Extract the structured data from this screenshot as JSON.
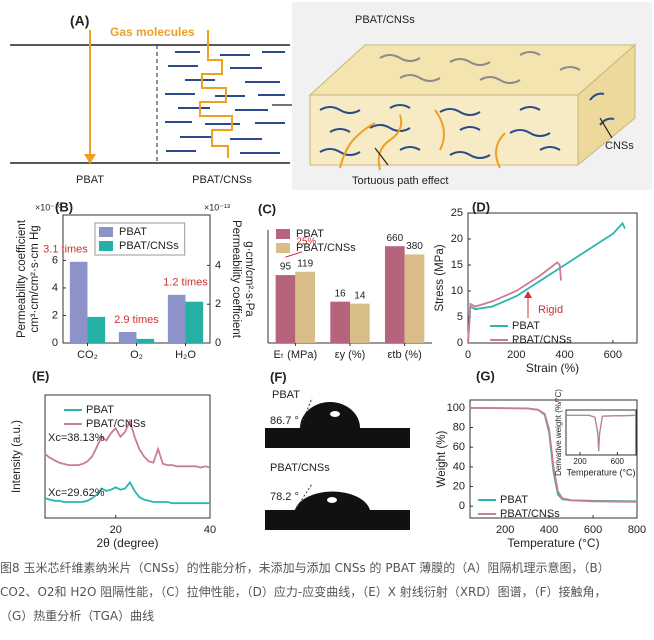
{
  "panel_a": {
    "label": "(A)",
    "gas_molecules": "Gas molecules",
    "left_film": "PBAT",
    "right_film": "PBAT/CNSs",
    "block_title": "PBAT/CNSs",
    "cns_label": "CNSs",
    "path_label": "Tortuous path effect"
  },
  "panel_f": {
    "label": "(F)",
    "top_name": "PBAT",
    "top_angle": "86.7 °",
    "bottom_name": "PBAT/CNSs",
    "bottom_angle": "78.2 °"
  },
  "chart_data": [
    {
      "type": "bar",
      "panel_label": "(B)",
      "y_label": [
        "Permeability coefficient",
        "cm³·cm/cm²·s·cm Hg"
      ],
      "y_multiplier": "×10⁻¹⁰",
      "y2_label": [
        "Permeability coefficient",
        "g·cm/cm²·s·Pa"
      ],
      "y2_multiplier": "×10⁻¹³",
      "categories": [
        "CO₂",
        "O₂",
        "H₂O"
      ],
      "series": [
        {
          "name": "PBAT",
          "color": "#8d93c9",
          "values": [
            5.9,
            0.8,
            3.5
          ]
        },
        {
          "name": "PBAT/CNSs",
          "color": "#25b0a5",
          "values": [
            1.9,
            0.3,
            3.0
          ]
        }
      ],
      "ylim": [
        0,
        9.3
      ],
      "yticks": [
        0,
        2,
        4,
        6
      ],
      "y2lim": [
        0,
        6.6
      ],
      "y2ticks": [
        0,
        2,
        4
      ],
      "annotations": [
        "3.1 times",
        "2.9 times",
        "1.2 times"
      ],
      "legend": "upper right"
    },
    {
      "type": "bar",
      "panel_label": "(C)",
      "log": true,
      "data_labels": true,
      "categories": [
        "Eₜ (MPa)",
        "εy (%)",
        "εtb (%)"
      ],
      "series": [
        {
          "name": "PBAT",
          "color": "#b5647c",
          "values": [
            95,
            16,
            660
          ]
        },
        {
          "name": "PBAT/CNSs",
          "color": "#d8bd88",
          "values": [
            119,
            14,
            380
          ]
        }
      ],
      "ylim": [
        1,
        1000
      ],
      "annotations": [
        "25%"
      ],
      "legend": "upper left"
    },
    {
      "type": "line",
      "panel_label": "(D)",
      "x_label": "Strain (%)",
      "y_label": "Stress (MPa)",
      "series": [
        {
          "name": "PBAT",
          "color": "#2bb5b0",
          "x": [
            0,
            10,
            30,
            100,
            200,
            300,
            400,
            500,
            600,
            640,
            650
          ],
          "values": [
            0,
            7,
            6.5,
            7,
            9,
            12,
            15,
            18,
            21,
            23,
            22
          ]
        },
        {
          "name": "PBAT/CNSs",
          "color": "#c97d92",
          "x": [
            0,
            10,
            30,
            100,
            200,
            300,
            370,
            380,
            385
          ],
          "values": [
            0,
            7.5,
            7,
            8,
            10,
            13,
            15.5,
            15,
            12
          ]
        }
      ],
      "xlim": [
        0,
        700
      ],
      "xticks": [
        0,
        200,
        400,
        600
      ],
      "ylim": [
        0,
        25
      ],
      "yticks": [
        0,
        5,
        10,
        15,
        20,
        25
      ],
      "annotations": [
        "Rigid"
      ],
      "legend": "lower right"
    },
    {
      "type": "line",
      "panel_label": "(E)",
      "x_label": "2θ (degree)",
      "y_label": "Intensity (a.u.)",
      "x": [
        5,
        6,
        7,
        8,
        9,
        10,
        11,
        12,
        13,
        14,
        15,
        16,
        17,
        18,
        19,
        20,
        21,
        22,
        23,
        24,
        25,
        26,
        27,
        28,
        29,
        30,
        31,
        32,
        33,
        34,
        35,
        36,
        37,
        38,
        39,
        40
      ],
      "series": [
        {
          "name": "PBAT",
          "color": "#2bb5b0",
          "values": [
            1.6,
            1.5,
            1.4,
            1.4,
            1.3,
            1.3,
            1.3,
            1.3,
            1.3,
            1.4,
            1.6,
            1.9,
            2.4,
            2.2,
            2.3,
            2.5,
            2.3,
            2.4,
            2.9,
            2.2,
            1.7,
            1.5,
            1.4,
            1.3,
            1.3,
            1.3,
            1.3,
            1.2,
            1.2,
            1.2,
            1.2,
            1.2,
            1.2,
            1.2,
            1.2,
            1.2
          ]
        },
        {
          "name": "PBAT/CNSs",
          "color": "#c97d92",
          "values": [
            5.2,
            4.9,
            4.7,
            4.5,
            4.4,
            4.3,
            4.3,
            4.3,
            4.4,
            4.6,
            5.0,
            5.8,
            6.6,
            6.3,
            6.9,
            7.3,
            6.6,
            7.0,
            7.9,
            6.6,
            5.6,
            5.0,
            4.6,
            4.5,
            5.6,
            4.4,
            4.3,
            4.3,
            4.2,
            4.2,
            4.2,
            4.2,
            4.2,
            4.1,
            4.2,
            4.1
          ]
        }
      ],
      "xlim": [
        5,
        40
      ],
      "xticks": [
        20,
        40
      ],
      "ylim": [
        0,
        10
      ],
      "annotations": [
        "Xc=38.13%",
        "Xc=29.62%"
      ],
      "legend": "upper left"
    },
    {
      "type": "line",
      "panel_label": "(G)",
      "x_label": "Temperature (°C)",
      "y_label": "Weight (%)",
      "x": [
        40,
        300,
        350,
        380,
        400,
        420,
        440,
        460,
        500,
        600,
        800
      ],
      "series": [
        {
          "name": "PBAT",
          "color": "#2bb5b0",
          "values": [
            100,
            99.5,
            98,
            93,
            75,
            35,
            12,
            7,
            6,
            5.5,
            5
          ]
        },
        {
          "name": "PBAT/CNSs",
          "color": "#c97d92",
          "values": [
            100,
            99.5,
            98,
            94,
            78,
            40,
            15,
            8,
            6,
            5,
            4.5
          ]
        }
      ],
      "xlim": [
        40,
        800
      ],
      "xticks": [
        200,
        400,
        600,
        800
      ],
      "ylim": [
        -12,
        108
      ],
      "yticks": [
        0,
        20,
        40,
        60,
        80,
        100
      ],
      "legend": "lower left"
    },
    {
      "type": "line",
      "x_label": "Temperature (°C)",
      "y_label": "Derivative weight (%/°C)",
      "x": [
        50,
        300,
        360,
        390,
        400,
        410,
        440,
        800
      ],
      "series": [
        {
          "color": "#2bb5b0",
          "values": [
            0,
            0,
            -0.05,
            -0.5,
            -1,
            -0.5,
            -0.02,
            0
          ]
        },
        {
          "color": "#c97d92",
          "values": [
            0,
            0,
            -0.05,
            -0.45,
            -0.95,
            -0.5,
            -0.02,
            0
          ]
        }
      ],
      "xlim": [
        50,
        800
      ],
      "xticks": [
        200,
        600
      ],
      "ylim": [
        -1.1,
        0.15
      ]
    }
  ],
  "caption": {
    "lines": [
      "图8 玉米芯纤维素纳米片（CNSs）的性能分析，未添加与添加 CNSs 的 PBAT 薄膜的（A）阻隔机理示意图，（B）",
      "CO2、O2和 H2O 阻隔性能，（C）拉伸性能，（D）应力-应变曲线，（E）X 射线衍射（XRD）图谱，（F）接触角，",
      "（G）热重分析（TGA）曲线"
    ]
  }
}
